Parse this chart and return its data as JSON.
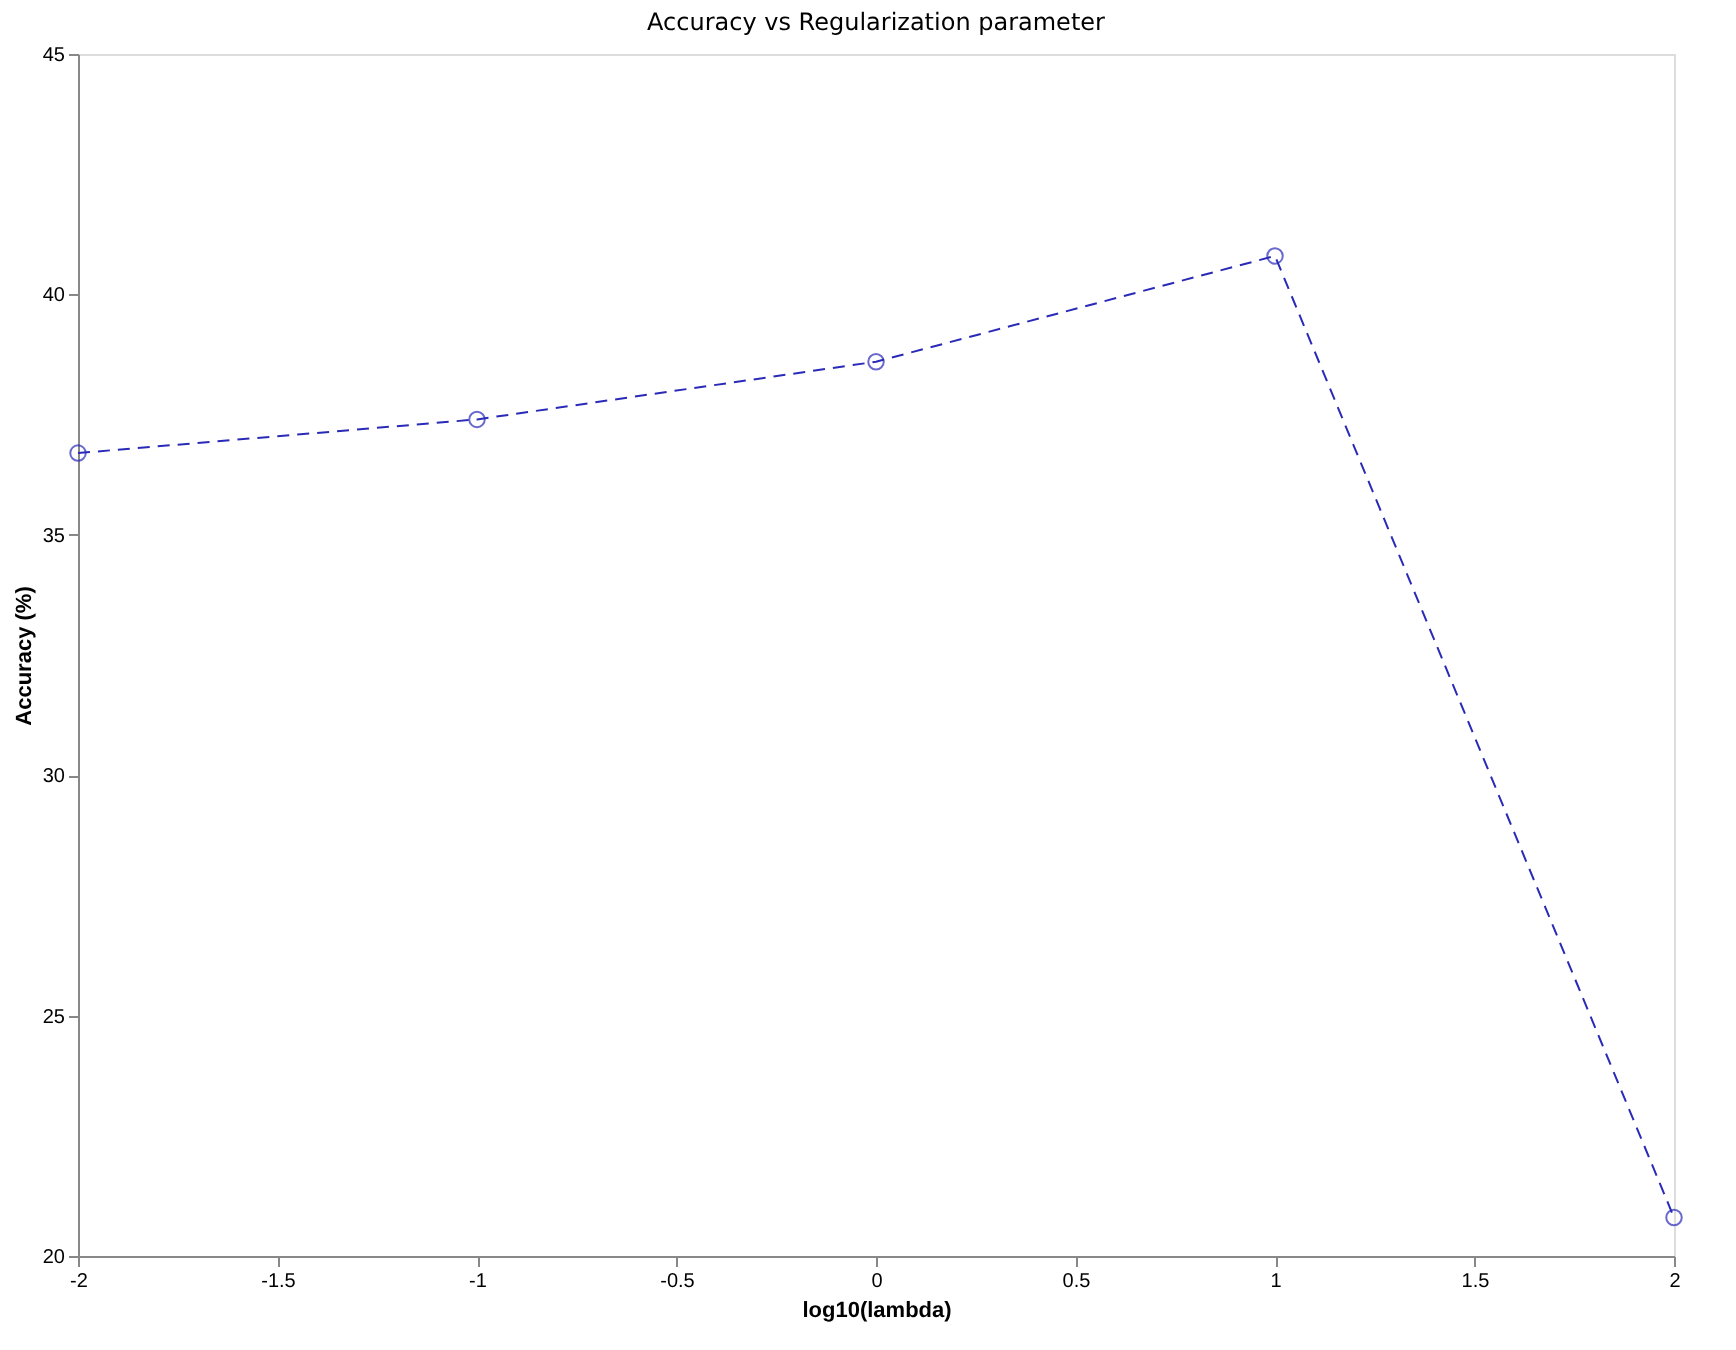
{
  "chart_data": {
    "type": "line",
    "title": "Accuracy vs Regularization parameter",
    "xlabel": "log10(lambda)",
    "ylabel": "Accuracy (%)",
    "x": [
      -2,
      -1,
      0,
      1,
      2
    ],
    "series": [
      {
        "color": "#2a2ab8",
        "values": [
          36.7,
          37.4,
          38.6,
          40.8,
          20.8
        ]
      }
    ],
    "xlim": [
      -2,
      2
    ],
    "xticks": [
      -2,
      -1.5,
      -1,
      -0.5,
      0,
      0.5,
      1,
      1.5,
      2
    ],
    "ylim": [
      20,
      45
    ],
    "yticks": [
      20,
      25,
      30,
      35,
      40,
      45
    ],
    "grid": false,
    "marker": "circle",
    "line_style": "dashed"
  }
}
